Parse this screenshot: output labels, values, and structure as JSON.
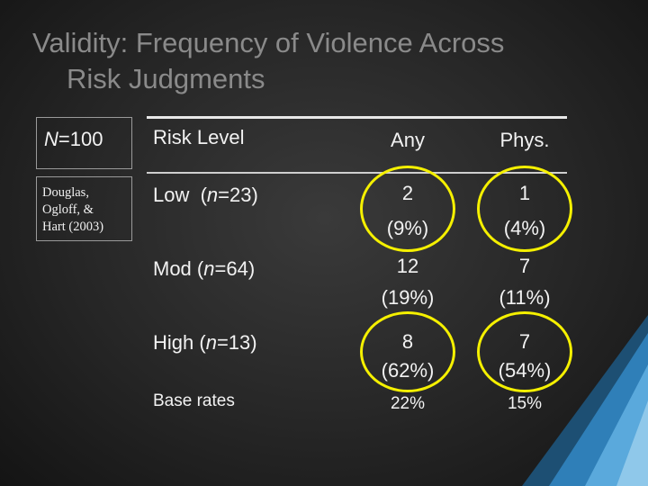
{
  "slide": {
    "title_line1": "Validity: Frequency of Violence Across",
    "title_line2": "Risk Judgments"
  },
  "sidebar": {
    "n_italic": "N",
    "n_rest": "=100",
    "reference_lines": [
      "Douglas,",
      "Ogloff, &",
      "Hart (2003)"
    ]
  },
  "table": {
    "headers": {
      "risk_level": "Risk Level",
      "any": "Any",
      "phys": "Phys."
    },
    "rows": [
      {
        "label": "Low",
        "n_label": "n",
        "n_value": "=23)",
        "label_prefix": "(",
        "any_count": "2",
        "any_pct": "(9%)",
        "phys_count": "1",
        "phys_pct": "(4%)"
      },
      {
        "label": "Mod",
        "n_label": "n",
        "n_value": "=64)",
        "label_prefix": "(",
        "any_count": "12",
        "any_pct": "(19%)",
        "phys_count": "7",
        "phys_pct": "(11%)"
      },
      {
        "label": "High",
        "n_label": "n",
        "n_value": "=13)",
        "label_prefix": "(",
        "any_count": "8",
        "any_pct": "(62%)",
        "phys_count": "7",
        "phys_pct": "(54%)"
      }
    ],
    "base_rates": {
      "label": "Base rates",
      "any": "22%",
      "phys": "15%"
    }
  },
  "colors": {
    "highlight_ring": "#f5f000",
    "title": "#8a8a8a",
    "accent_deco": "#2f7fb8"
  }
}
